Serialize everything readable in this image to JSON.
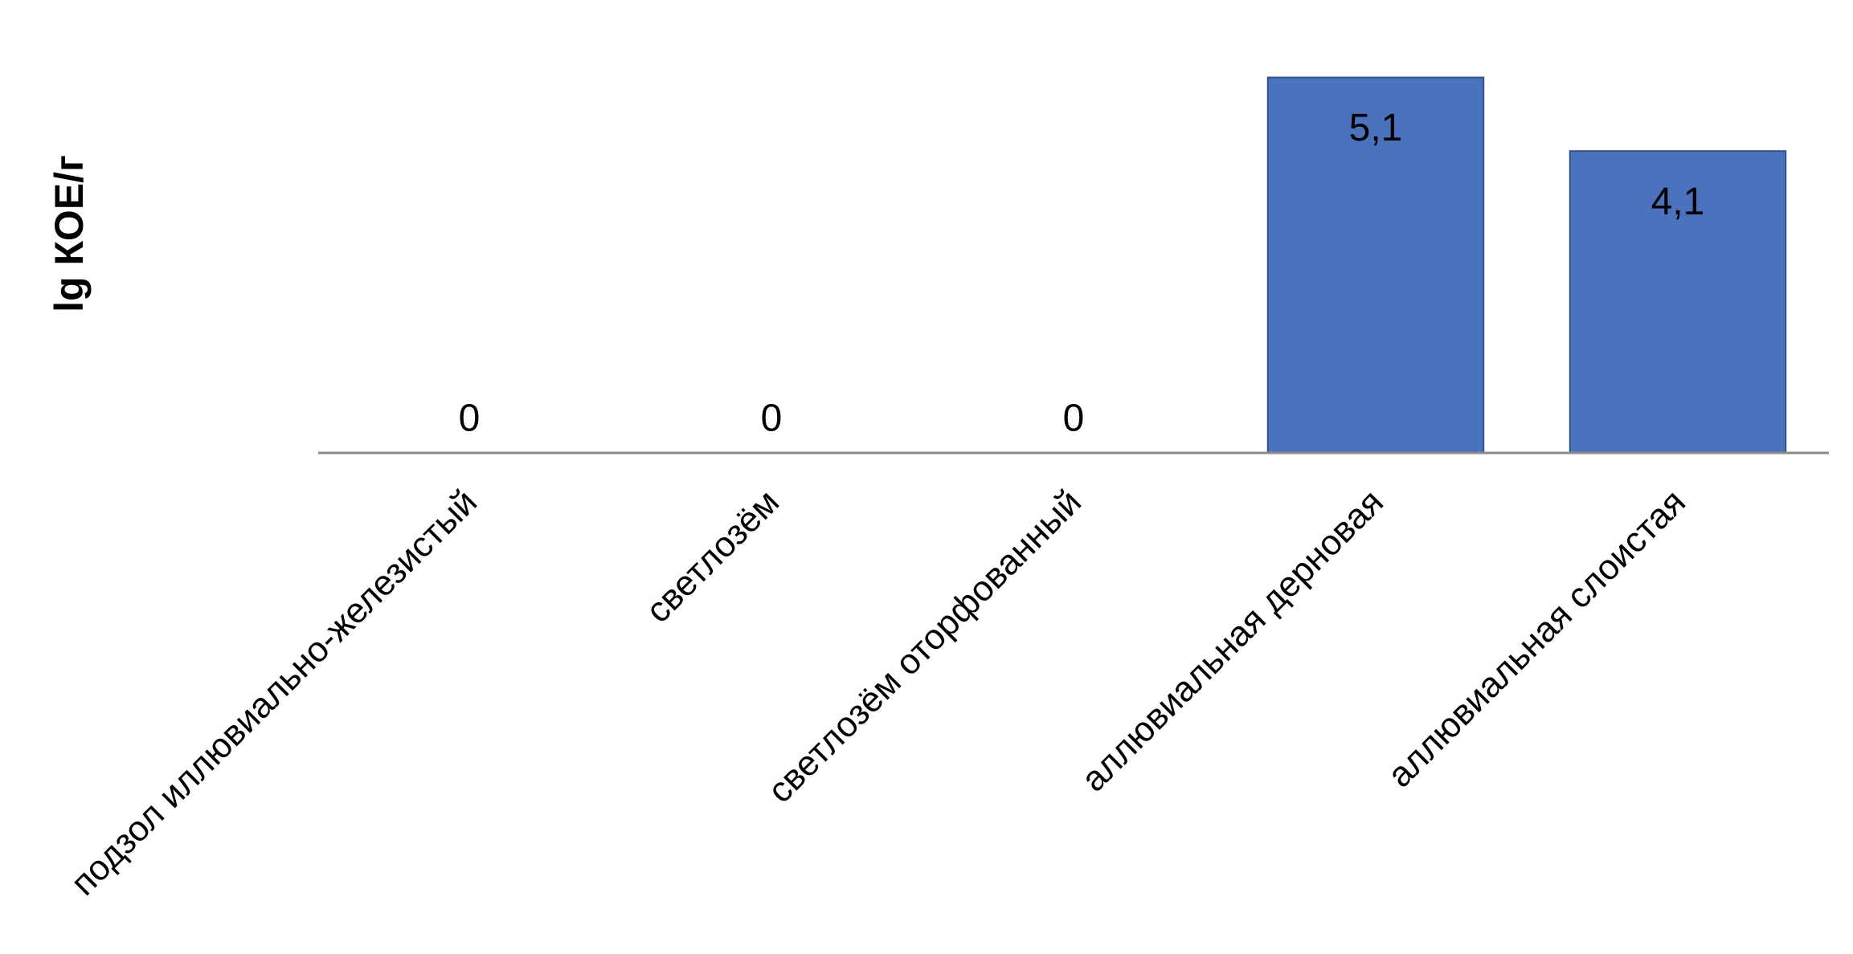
{
  "chart_data": {
    "type": "bar",
    "y_label": "lg КОЕ/г",
    "categories": [
      "подзол иллювиально-железистый",
      "светлозём",
      "светлозём оторфованный",
      "аллювиальная дерновая",
      "аллювиальная слоистая"
    ],
    "values": [
      0,
      0,
      0,
      5.1,
      4.1
    ],
    "value_labels": [
      "0",
      "0",
      "0",
      "5,1",
      "4,1"
    ],
    "color": "#4a72bd",
    "ylim": [
      0,
      6
    ]
  }
}
